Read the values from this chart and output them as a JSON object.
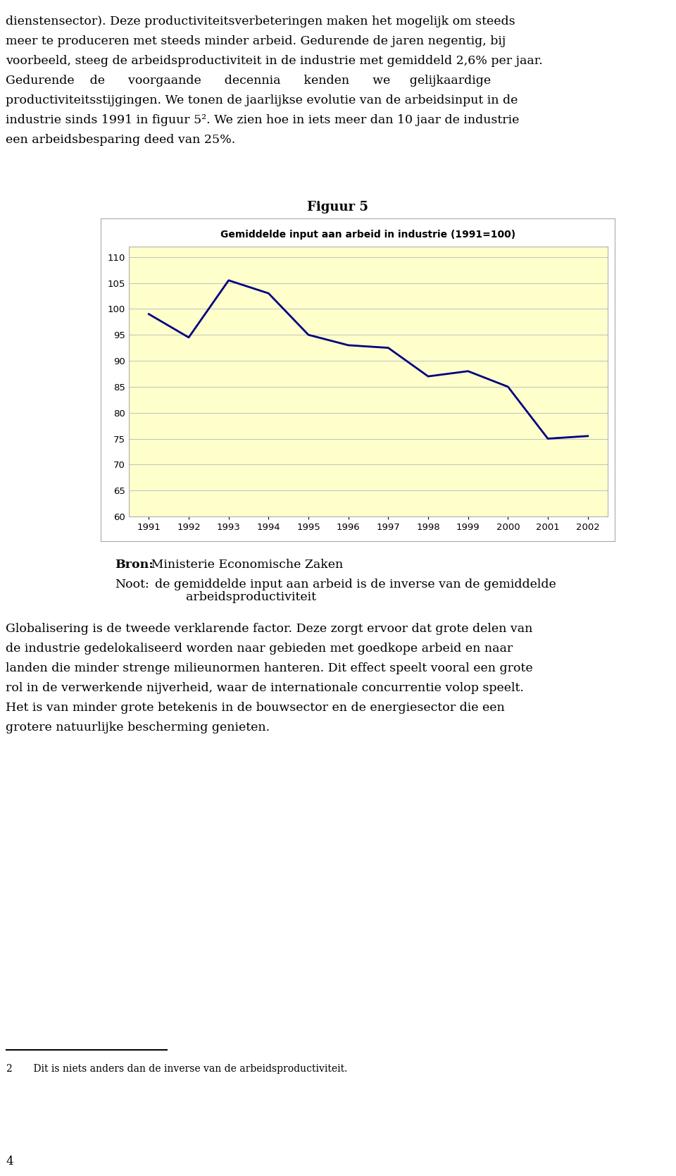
{
  "title_above": "Figuur 5",
  "chart_title": "Gemiddelde input aan arbeid in industrie (1991=100)",
  "years": [
    1991,
    1992,
    1993,
    1994,
    1995,
    1996,
    1997,
    1998,
    1999,
    2000,
    2001,
    2002
  ],
  "values": [
    99,
    94.5,
    105.5,
    103,
    95,
    93,
    92.5,
    87,
    88,
    85,
    75,
    75.5
  ],
  "line_color": "#000080",
  "line_width": 2.0,
  "plot_bg_color": "#FFFFCC",
  "outer_bg_color": "#FFFFFF",
  "ylim": [
    60,
    112
  ],
  "yticks": [
    60,
    65,
    70,
    75,
    80,
    85,
    90,
    95,
    100,
    105,
    110
  ],
  "grid_color": "#C0C0C0",
  "border_color": "#808080",
  "text_color": "#000000",
  "para1_lines": [
    "dienstensector). Deze productiviteitsverbeteringen maken het mogelijk om steeds",
    "meer te produceren met steeds minder arbeid. Gedurende de jaren negentig, bij",
    "voorbeeld, steeg de arbeidsproductiviteit in de industrie met gemiddeld 2,6% per jaar.",
    "Gedurende    de      voorgaande      decennia      kenden      we     gelijkaardige",
    "productiviteitsstijgingen. We tonen de jaarlijkse evolutie van de arbeidsinput in de",
    "industrie sinds 1991 in figuur 5². We zien hoe in iets meer dan 10 jaar de industrie",
    "een arbeidsbesparing deed van 25%."
  ],
  "source_bold": "Bron:",
  "source_rest": " Ministerie Economische Zaken",
  "note_bold": "Noot:",
  "note_rest": "  de gemiddelde input aan arbeid is de inverse van de gemiddelde",
  "note_rest2": "          arbeidsproductiviteit",
  "para2_lines": [
    "Globalisering is de tweede verklarende factor. Deze zorgt ervoor dat grote delen van",
    "de industrie gedelokaliseerd worden naar gebieden met goedkope arbeid en naar",
    "landen die minder strenge milieunormen hanteren. Dit effect speelt vooral een grote",
    "rol in de verwerkende nijverheid, waar de internationale concurrentie volop speelt.",
    "Het is van minder grote betekenis in de bouwsector en de energiesector die een",
    "grotere natuurlijke bescherming genieten."
  ],
  "footnote_num": "2",
  "footnote_text": "    Dit is niets anders dan de inverse van de arbeidsproductiviteit.",
  "page_num": "4",
  "font_size_body": 12.5,
  "font_size_title": 14,
  "font_size_figuur": 13,
  "font_size_chart_title": 10,
  "font_size_tick": 9.5,
  "font_size_footnote": 10,
  "font_size_pagenum": 12
}
